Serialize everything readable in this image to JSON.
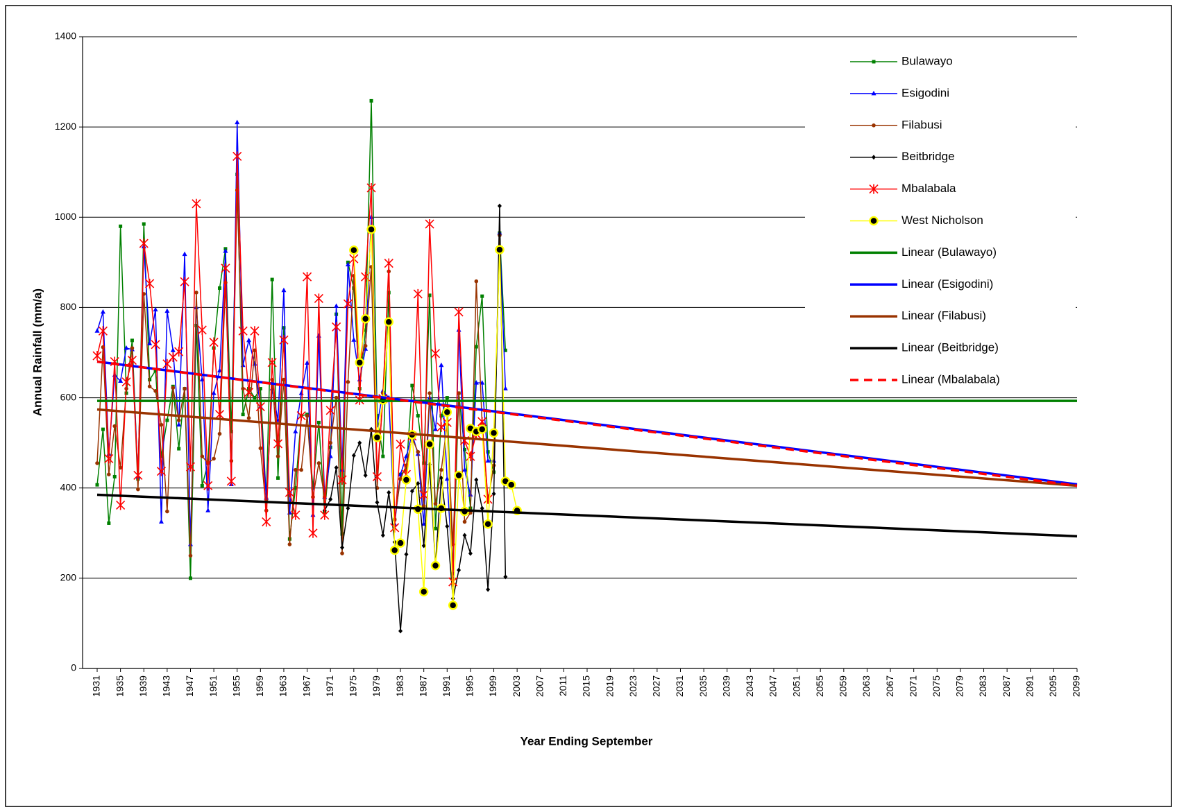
{
  "chart_data": {
    "type": "line",
    "y_label": "Annual Rainfall (mm/a)",
    "x_label": "Year Ending September",
    "xlim": [
      1928.5,
      2099
    ],
    "xticks": [
      1931,
      1935,
      1939,
      1943,
      1947,
      1951,
      1955,
      1959,
      1963,
      1967,
      1971,
      1975,
      1979,
      1983,
      1987,
      1991,
      1995,
      1999,
      2003,
      2007,
      2011,
      2015,
      2019,
      2023,
      2027,
      2031,
      2035,
      2039,
      2043,
      2047,
      2051,
      2055,
      2059,
      2063,
      2067,
      2071,
      2075,
      2079,
      2083,
      2087,
      2091,
      2095,
      2099
    ],
    "ylim": [
      0,
      1400
    ],
    "yticks": [
      0,
      200,
      400,
      600,
      800,
      1000,
      1200,
      1400
    ],
    "grid": true,
    "legend": "upper right",
    "series": [
      {
        "name": "Bulawayo",
        "color": "#008000",
        "marker": "square",
        "line_width": 1.5,
        "x": [
          1931,
          1932,
          1933,
          1934,
          1935,
          1936,
          1937,
          1938,
          1939,
          1940,
          1941,
          1942,
          1943,
          1944,
          1945,
          1946,
          1947,
          1948,
          1949,
          1950,
          1951,
          1952,
          1953,
          1954,
          1955,
          1956,
          1957,
          1958,
          1959,
          1960,
          1961,
          1962,
          1963,
          1964,
          1965,
          1966,
          1967,
          1968,
          1969,
          1970,
          1971,
          1972,
          1973,
          1974,
          1975,
          1976,
          1977,
          1978,
          1979,
          1980,
          1981,
          1982,
          1983,
          1984,
          1985,
          1986,
          1987,
          1988,
          1989,
          1990,
          1991,
          1992,
          1993,
          1994,
          1995,
          1996,
          1997,
          1998,
          1999,
          2000,
          2001
        ],
        "values": [
          407,
          530,
          322,
          425,
          980,
          610,
          727,
          420,
          985,
          640,
          660,
          470,
          550,
          625,
          487,
          620,
          200,
          760,
          405,
          455,
          710,
          843,
          930,
          525,
          1095,
          563,
          620,
          600,
          620,
          375,
          862,
          422,
          755,
          287,
          400,
          560,
          563,
          400,
          545,
          345,
          490,
          785,
          298,
          900,
          843,
          620,
          750,
          1258,
          560,
          470,
          833,
          330,
          430,
          440,
          627,
          560,
          455,
          827,
          310,
          560,
          600,
          210,
          610,
          485,
          355,
          713,
          825,
          480,
          435,
          965,
          705
        ]
      },
      {
        "name": "Esigodini",
        "color": "#0000ff",
        "marker": "triangle",
        "line_width": 1.5,
        "x": [
          1931,
          1932,
          1933,
          1934,
          1935,
          1936,
          1937,
          1938,
          1939,
          1940,
          1941,
          1942,
          1943,
          1944,
          1945,
          1946,
          1947,
          1948,
          1949,
          1950,
          1951,
          1952,
          1953,
          1954,
          1955,
          1956,
          1957,
          1958,
          1959,
          1960,
          1961,
          1962,
          1963,
          1964,
          1965,
          1966,
          1967,
          1968,
          1969,
          1970,
          1971,
          1972,
          1973,
          1974,
          1975,
          1976,
          1977,
          1978,
          1979,
          1980,
          1981,
          1982,
          1983,
          1984,
          1985,
          1986,
          1987,
          1988,
          1989,
          1990,
          1991,
          1992,
          1993,
          1994,
          1995,
          1996,
          1997,
          1998,
          1999,
          2000,
          2001
        ],
        "values": [
          748,
          790,
          475,
          650,
          637,
          710,
          707,
          425,
          935,
          720,
          795,
          325,
          792,
          705,
          540,
          918,
          275,
          800,
          640,
          350,
          610,
          660,
          925,
          408,
          1210,
          672,
          727,
          675,
          580,
          378,
          620,
          550,
          838,
          345,
          525,
          610,
          677,
          340,
          737,
          380,
          470,
          803,
          440,
          895,
          728,
          640,
          708,
          1000,
          538,
          615,
          600,
          320,
          430,
          470,
          520,
          475,
          320,
          600,
          530,
          672,
          420,
          200,
          750,
          440,
          385,
          633,
          633,
          460,
          460,
          965,
          620
        ]
      },
      {
        "name": "Filabusi",
        "color": "#993300",
        "marker": "circle",
        "line_width": 1.5,
        "x": [
          1931,
          1932,
          1933,
          1934,
          1935,
          1936,
          1937,
          1938,
          1939,
          1940,
          1941,
          1942,
          1943,
          1944,
          1945,
          1946,
          1947,
          1948,
          1949,
          1950,
          1951,
          1952,
          1953,
          1954,
          1955,
          1956,
          1957,
          1958,
          1959,
          1960,
          1961,
          1962,
          1963,
          1964,
          1965,
          1966,
          1967,
          1968,
          1969,
          1970,
          1971,
          1972,
          1973,
          1974,
          1975,
          1976,
          1977,
          1978,
          1979,
          1980,
          1981,
          1982,
          1983,
          1984,
          1985,
          1986,
          1987,
          1988,
          1989,
          1990,
          1991,
          1992,
          1993,
          1994,
          1995,
          1996,
          1997,
          1998,
          1999,
          2000
        ],
        "values": [
          455,
          712,
          430,
          537,
          445,
          620,
          710,
          397,
          830,
          625,
          615,
          540,
          348,
          622,
          550,
          620,
          250,
          833,
          470,
          455,
          465,
          520,
          855,
          460,
          1060,
          620,
          555,
          705,
          488,
          350,
          640,
          470,
          640,
          275,
          440,
          440,
          560,
          380,
          455,
          380,
          500,
          600,
          255,
          635,
          870,
          680,
          715,
          890,
          400,
          610,
          880,
          330,
          420,
          450,
          510,
          480,
          360,
          610,
          365,
          440,
          540,
          275,
          610,
          325,
          345,
          858,
          540,
          370,
          450,
          960
        ]
      },
      {
        "name": "Beitbridge",
        "color": "#000000",
        "marker": "diamond",
        "line_width": 1.5,
        "x": [
          1970,
          1971,
          1972,
          1973,
          1974,
          1975,
          1976,
          1977,
          1978,
          1979,
          1980,
          1981,
          1982,
          1983,
          1984,
          1985,
          1986,
          1987,
          1988,
          1989,
          1990,
          1991,
          1992,
          1993,
          1994,
          1995,
          1996,
          1997,
          1998,
          1999,
          2000,
          2001
        ],
        "values": [
          350,
          375,
          445,
          268,
          355,
          472,
          500,
          428,
          530,
          368,
          295,
          390,
          280,
          83,
          253,
          393,
          410,
          272,
          452,
          230,
          422,
          315,
          155,
          218,
          295,
          255,
          418,
          355,
          175,
          387,
          1025,
          203
        ]
      },
      {
        "name": "Mbalabala",
        "color": "#ff0000",
        "marker": "star",
        "line_width": 1.5,
        "x": [
          1931,
          1932,
          1933,
          1934,
          1935,
          1936,
          1937,
          1938,
          1939,
          1940,
          1941,
          1942,
          1943,
          1944,
          1945,
          1946,
          1947,
          1948,
          1949,
          1950,
          1951,
          1952,
          1953,
          1954,
          1955,
          1956,
          1957,
          1958,
          1959,
          1960,
          1961,
          1962,
          1963,
          1964,
          1965,
          1966,
          1967,
          1968,
          1969,
          1970,
          1971,
          1972,
          1973,
          1974,
          1975,
          1976,
          1977,
          1978,
          1979,
          1980,
          1981,
          1982,
          1983,
          1984,
          1985,
          1986,
          1987,
          1988,
          1989,
          1990,
          1991,
          1992,
          1993,
          1994,
          1995,
          1996,
          1997,
          1998
        ],
        "values": [
          693,
          748,
          465,
          680,
          362,
          635,
          683,
          428,
          942,
          853,
          718,
          437,
          675,
          690,
          702,
          857,
          447,
          1030,
          750,
          405,
          723,
          563,
          887,
          415,
          1135,
          748,
          612,
          748,
          580,
          325,
          678,
          498,
          728,
          390,
          340,
          560,
          868,
          300,
          820,
          340,
          572,
          757,
          418,
          808,
          908,
          595,
          868,
          1065,
          425,
          598,
          898,
          312,
          497,
          430,
          515,
          830,
          385,
          985,
          698,
          535,
          545,
          192,
          790,
          505,
          470,
          520,
          547,
          375
        ]
      },
      {
        "name": "West Nicholson",
        "color": "#ffff00",
        "marker": "ring",
        "line_width": 1.5,
        "x": [
          1975,
          1976,
          1977,
          1978,
          1979,
          1980,
          1981,
          1982,
          1983,
          1984,
          1985,
          1986,
          1987,
          1988,
          1989,
          1990,
          1991,
          1992,
          1993,
          1994,
          1995,
          1996,
          1997,
          1998,
          1999,
          2000,
          2001,
          2002,
          2003
        ],
        "values": [
          927,
          678,
          775,
          973,
          512,
          595,
          768,
          262,
          278,
          418,
          518,
          353,
          170,
          497,
          228,
          355,
          568,
          140,
          428,
          348,
          532,
          525,
          530,
          320,
          522,
          928,
          415,
          407,
          350
        ]
      },
      {
        "name": "Linear (Bulawayo)",
        "color": "#008000",
        "line_width": 3.5,
        "x": [
          1931,
          2099
        ],
        "values": [
          593,
          593
        ]
      },
      {
        "name": "Linear (Esigodini)",
        "color": "#0000ff",
        "line_width": 3.5,
        "x": [
          1931,
          2099
        ],
        "values": [
          680,
          408
        ]
      },
      {
        "name": "Linear (Filabusi)",
        "color": "#993300",
        "line_width": 3.5,
        "x": [
          1931,
          2099
        ],
        "values": [
          574,
          405
        ]
      },
      {
        "name": "Linear (Beitbridge)",
        "color": "#000000",
        "line_width": 3.5,
        "x": [
          1931,
          2099
        ],
        "values": [
          385,
          293
        ]
      },
      {
        "name": "Linear (Mbalabala)",
        "color": "#ff0000",
        "line_width": 3.5,
        "dash": true,
        "x": [
          1931,
          2099
        ],
        "values": [
          680,
          405
        ]
      }
    ]
  }
}
